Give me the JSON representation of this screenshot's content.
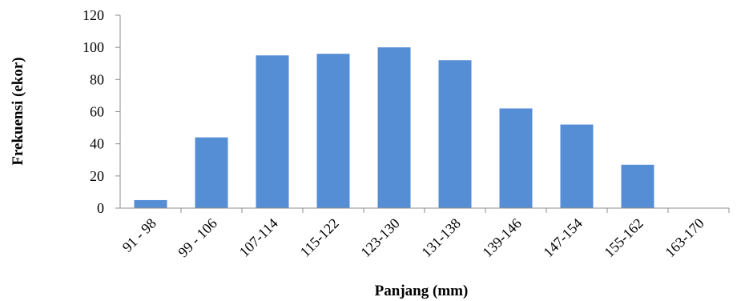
{
  "chart_data": {
    "type": "bar",
    "title": "",
    "xlabel": "Panjang (mm)",
    "ylabel": "Frekuensi (ekor)",
    "categories": [
      "91 - 98",
      "99 - 106",
      "107-114",
      "115-122",
      "123-130",
      "131-138",
      "139-146",
      "147-154",
      "155-162",
      "163-170"
    ],
    "values": [
      5,
      44,
      95,
      96,
      100,
      92,
      62,
      52,
      27,
      0
    ],
    "ylim": [
      0,
      120
    ],
    "yticks": [
      "0",
      "20",
      "40",
      "60",
      "80",
      "100",
      "120"
    ],
    "grid": false,
    "legend": "none",
    "bar_color": "#558ED5"
  }
}
